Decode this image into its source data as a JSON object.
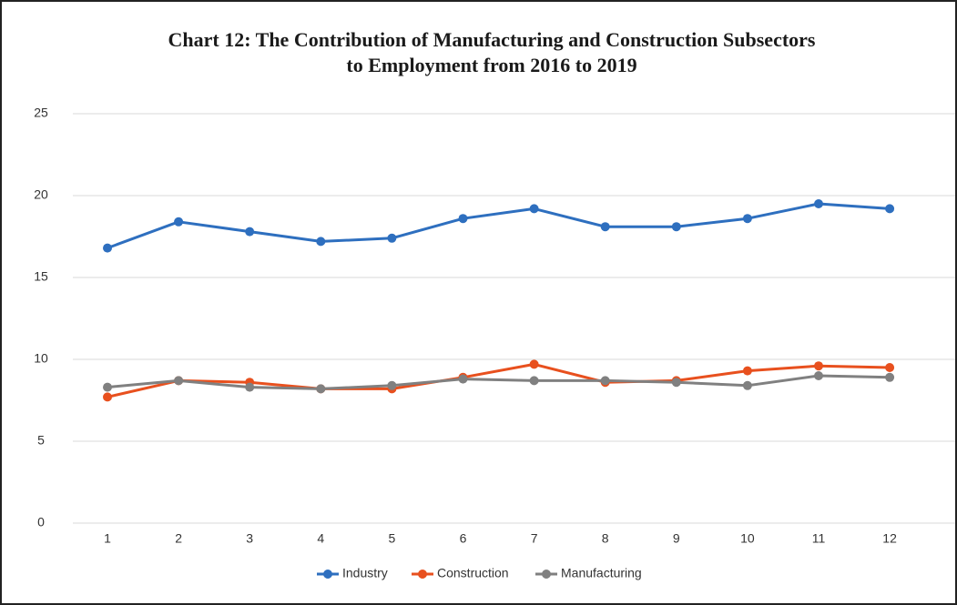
{
  "chart_data": {
    "type": "line",
    "title": [
      "Chart 12: The Contribution of Manufacturing and Construction Subsectors",
      "to Employment from 2016 to 2019"
    ],
    "categories": [
      "1",
      "2",
      "3",
      "4",
      "5",
      "6",
      "7",
      "8",
      "9",
      "10",
      "11",
      "12"
    ],
    "series": [
      {
        "name": "Industry",
        "color": "#2e6fbf",
        "values": [
          16.8,
          18.4,
          17.8,
          17.2,
          17.4,
          18.6,
          19.2,
          18.1,
          18.1,
          18.6,
          19.5,
          19.2
        ]
      },
      {
        "name": "Construction",
        "color": "#e8501e",
        "values": [
          7.7,
          8.7,
          8.6,
          8.2,
          8.2,
          8.9,
          9.7,
          8.6,
          8.7,
          9.3,
          9.6,
          9.5
        ]
      },
      {
        "name": "Manufacturing",
        "color": "#808080",
        "values": [
          8.3,
          8.7,
          8.3,
          8.2,
          8.4,
          8.8,
          8.7,
          8.7,
          8.6,
          8.4,
          9.0,
          8.9
        ]
      }
    ],
    "ylim": [
      0,
      25
    ],
    "yticks": [
      0,
      5,
      10,
      15,
      20,
      25
    ],
    "grid": true,
    "legend": "bottom"
  }
}
